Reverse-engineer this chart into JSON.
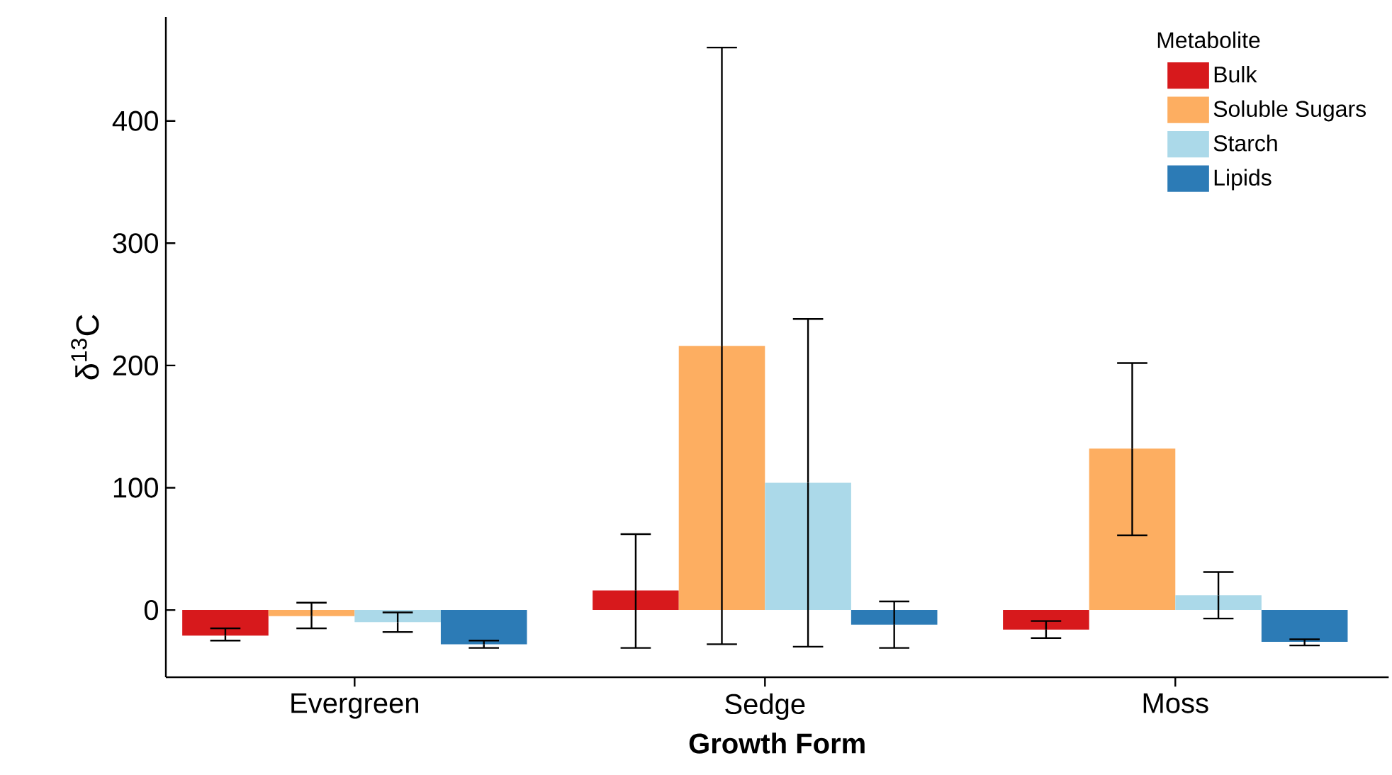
{
  "chart_data": {
    "type": "bar",
    "xlabel": "Growth Form",
    "ylabel": "δ$^{13}$C",
    "legend_title": "Metabolite",
    "legend": "top right",
    "categories": [
      "Evergreen",
      "Sedge",
      "Moss"
    ],
    "ylim": [
      -55,
      485
    ],
    "yticks": [
      0,
      100,
      200,
      300,
      400
    ],
    "series": [
      {
        "name": "Bulk",
        "color": "#d7191c",
        "values": [
          -21,
          16,
          -16
        ],
        "errors": [
          [
            -25,
            -15
          ],
          [
            -31,
            62
          ],
          [
            -23,
            -9
          ]
        ]
      },
      {
        "name": "Soluble Sugars",
        "color": "#fdae61",
        "values": [
          -5,
          216,
          132
        ],
        "errors": [
          [
            -15,
            6
          ],
          [
            -28,
            460
          ],
          [
            61,
            202
          ]
        ]
      },
      {
        "name": "Starch",
        "color": "#abd9e9",
        "values": [
          -10,
          104,
          12
        ],
        "errors": [
          [
            -18,
            -2
          ],
          [
            -30,
            238
          ],
          [
            -7,
            31
          ]
        ]
      },
      {
        "name": "Lipids",
        "color": "#2c7bb6",
        "values": [
          -28,
          -12,
          -26
        ],
        "errors": [
          [
            -31,
            -25
          ],
          [
            -31,
            7
          ],
          [
            -29,
            -24
          ]
        ]
      }
    ]
  }
}
